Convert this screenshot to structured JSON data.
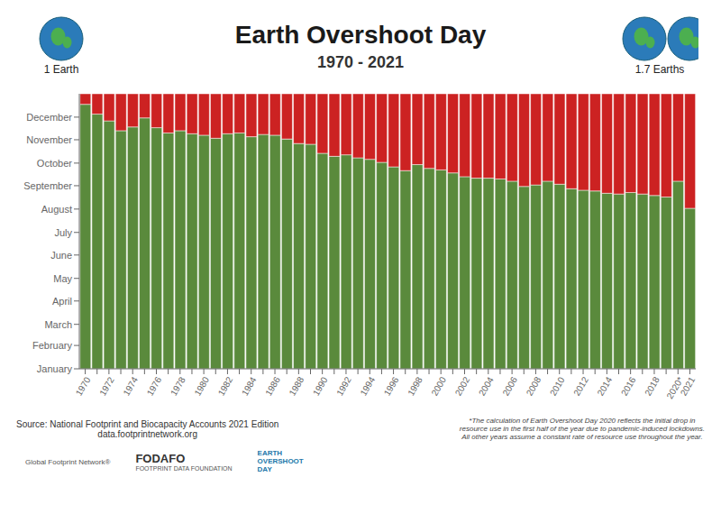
{
  "chart_data": {
    "type": "bar",
    "title": "Earth Overshoot Day",
    "subtitle": "1970 - 2021",
    "categories": [
      "1970",
      null,
      "1972",
      null,
      "1974",
      null,
      "1976",
      null,
      "1978",
      null,
      "1980",
      null,
      "1982",
      null,
      "1984",
      null,
      "1986",
      null,
      "1988",
      null,
      "1990",
      null,
      "1992",
      null,
      "1994",
      null,
      "1996",
      null,
      "1998",
      null,
      "2000",
      null,
      "2002",
      null,
      "2004",
      null,
      "2006",
      null,
      "2008",
      null,
      "2010",
      null,
      "2012",
      null,
      "2014",
      null,
      "2016",
      null,
      "2018",
      null,
      "2020*",
      "2021"
    ],
    "series": [
      {
        "color": "#5a8a3c",
        "values": [
          351,
          338,
          329,
          316,
          321,
          333,
          320,
          313,
          316,
          312,
          310,
          306,
          312,
          313,
          308,
          311,
          310,
          305,
          299,
          298,
          286,
          282,
          284,
          280,
          278,
          274,
          268,
          263,
          271,
          266,
          264,
          260,
          255,
          253,
          253,
          252,
          249,
          242,
          244,
          249,
          245,
          239,
          237,
          236,
          233,
          232,
          234,
          232,
          230,
          228,
          249,
          213
        ]
      },
      {
        "color": "#cc2222",
        "values": [
          14,
          27,
          36,
          49,
          44,
          32,
          45,
          52,
          49,
          53,
          55,
          59,
          53,
          52,
          57,
          54,
          55,
          60,
          66,
          67,
          79,
          83,
          81,
          85,
          87,
          91,
          97,
          102,
          94,
          99,
          101,
          105,
          110,
          112,
          112,
          113,
          116,
          123,
          121,
          116,
          120,
          126,
          128,
          129,
          132,
          133,
          131,
          133,
          135,
          137,
          116,
          152
        ]
      }
    ],
    "stacked": true,
    "ylim": [
      0,
      365
    ],
    "yticks": [
      {
        "value": 0,
        "label": "January"
      },
      {
        "value": 31,
        "label": "February"
      },
      {
        "value": 59,
        "label": "March"
      },
      {
        "value": 90,
        "label": "April"
      },
      {
        "value": 120,
        "label": "May"
      },
      {
        "value": 151,
        "label": "June"
      },
      {
        "value": 181,
        "label": "July"
      },
      {
        "value": 212,
        "label": "August"
      },
      {
        "value": 243,
        "label": "September"
      },
      {
        "value": 273,
        "label": "October"
      },
      {
        "value": 304,
        "label": "November"
      },
      {
        "value": 334,
        "label": "December"
      }
    ],
    "grid": false,
    "annotations": [
      "1 Earth",
      "1.7 Earths",
      "Source: National Footprint and Biocapacity Accounts 2021 Edition\ndata.footprintnetwork.org",
      "*The calculation of Earth Overshoot Day 2020 reflects the initial drop in\nresource use in the first half of the year due to pandemic-induced lockdowns.\nAll other years assume a constant rate of resource use throughout the year.",
      "Global Footprint Network®",
      "FODAFO",
      "FOOTPRINT DATA FOUNDATION",
      "EARTH\nOVERSHOOT\nDAY"
    ]
  }
}
